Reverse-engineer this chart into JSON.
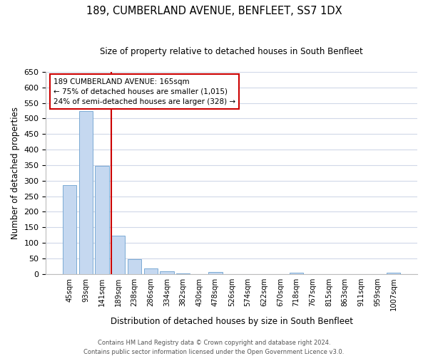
{
  "title": "189, CUMBERLAND AVENUE, BENFLEET, SS7 1DX",
  "subtitle": "Size of property relative to detached houses in South Benfleet",
  "bar_labels": [
    "45sqm",
    "93sqm",
    "141sqm",
    "189sqm",
    "238sqm",
    "286sqm",
    "334sqm",
    "382sqm",
    "430sqm",
    "478sqm",
    "526sqm",
    "574sqm",
    "622sqm",
    "670sqm",
    "718sqm",
    "767sqm",
    "815sqm",
    "863sqm",
    "911sqm",
    "959sqm",
    "1007sqm"
  ],
  "bar_values": [
    285,
    523,
    347,
    123,
    48,
    19,
    8,
    1,
    0,
    7,
    0,
    0,
    0,
    0,
    3,
    0,
    0,
    0,
    0,
    0,
    4
  ],
  "bar_color": "#c5d8f0",
  "bar_edge_color": "#7baad4",
  "ylim": [
    0,
    650
  ],
  "yticks": [
    0,
    50,
    100,
    150,
    200,
    250,
    300,
    350,
    400,
    450,
    500,
    550,
    600,
    650
  ],
  "ylabel": "Number of detached properties",
  "xlabel": "Distribution of detached houses by size in South Benfleet",
  "vline_index": 3,
  "vline_color": "#cc0000",
  "annotation_title": "189 CUMBERLAND AVENUE: 165sqm",
  "annotation_line1": "← 75% of detached houses are smaller (1,015)",
  "annotation_line2": "24% of semi-detached houses are larger (328) →",
  "annotation_box_color": "#ffffff",
  "annotation_box_edge_color": "#cc0000",
  "footer1": "Contains HM Land Registry data © Crown copyright and database right 2024.",
  "footer2": "Contains public sector information licensed under the Open Government Licence v3.0.",
  "background_color": "#ffffff",
  "grid_color": "#d0d8e8"
}
